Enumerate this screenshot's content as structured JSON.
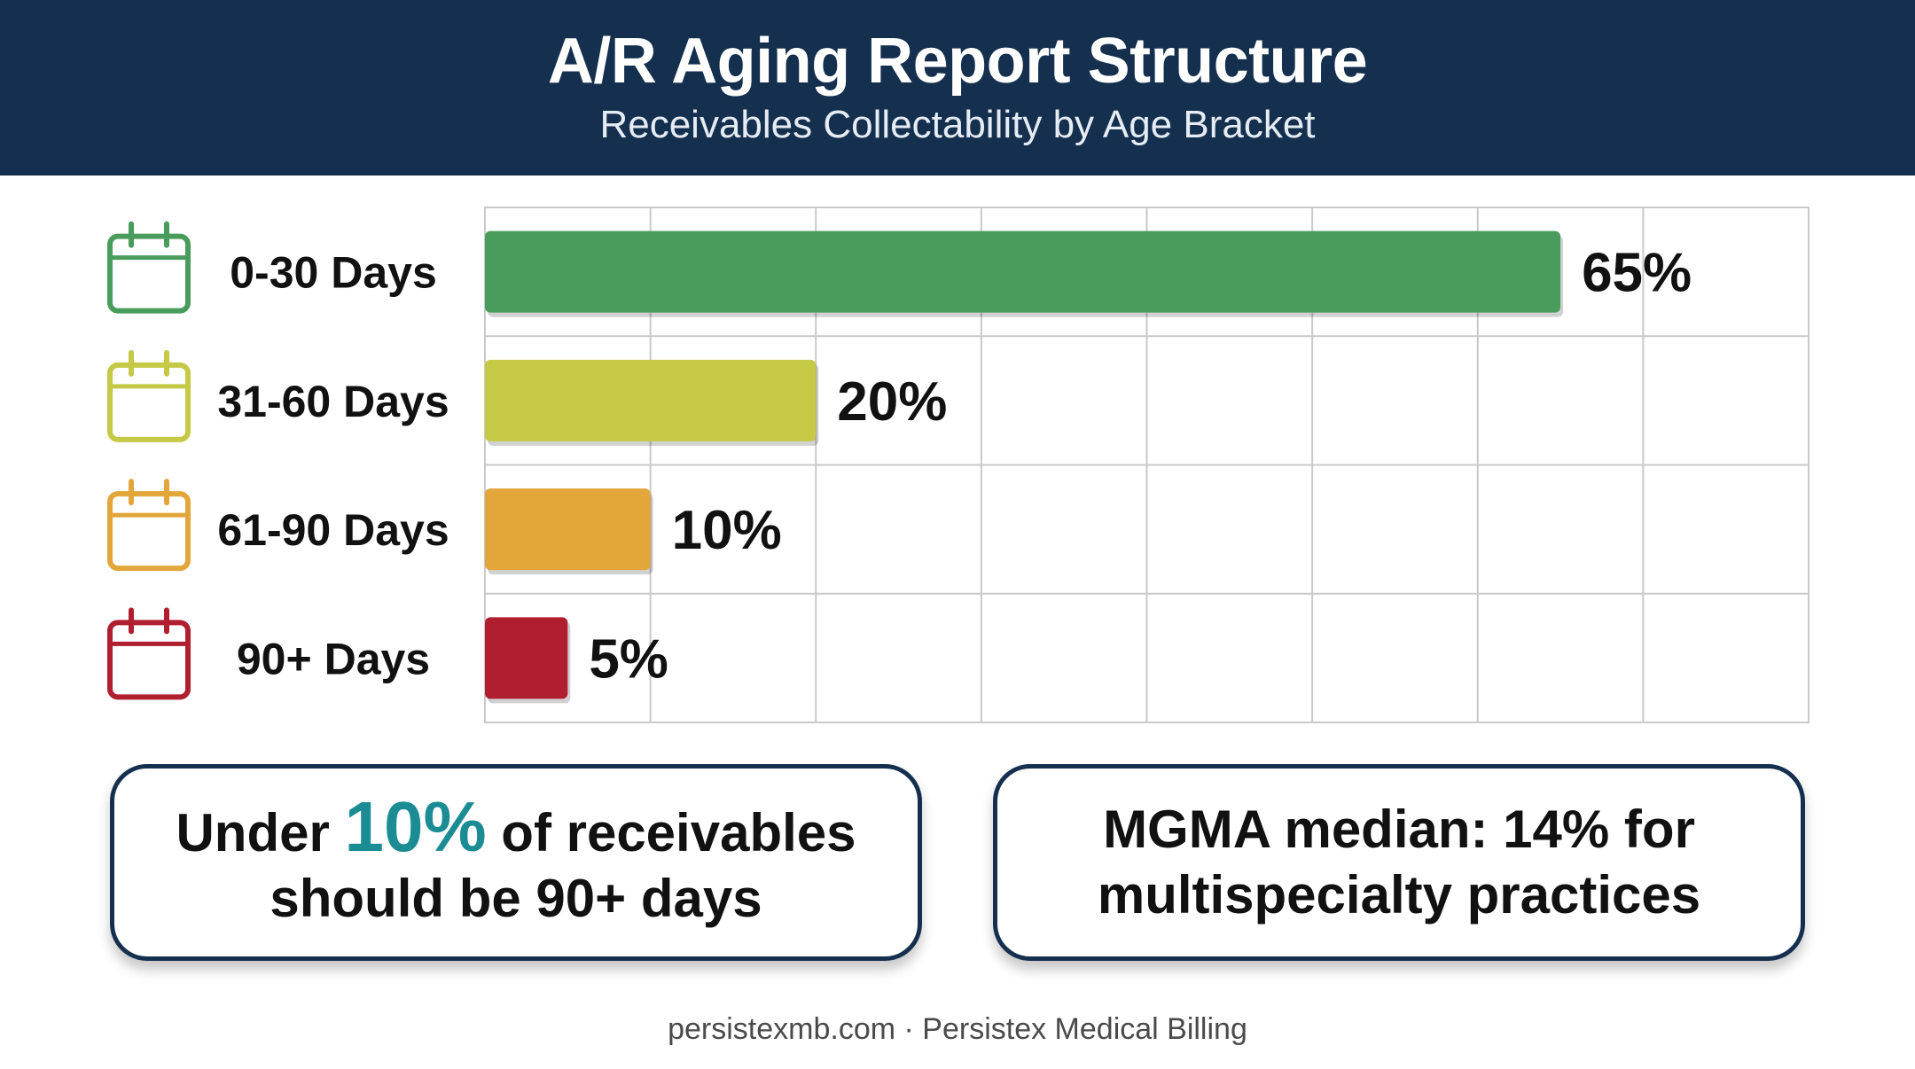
{
  "header": {
    "title": "A/R Aging Report Structure",
    "subtitle": "Receivables Collectability by Age Bracket"
  },
  "chart_data": {
    "type": "bar",
    "orientation": "horizontal",
    "title": "A/R Aging Report Structure",
    "subtitle": "Receivables Collectability by Age Bracket",
    "xlabel": "",
    "ylabel": "",
    "xlim": [
      0,
      80
    ],
    "grid": true,
    "categories": [
      "0-30 Days",
      "31-60 Days",
      "61-90 Days",
      "90+ Days"
    ],
    "values": [
      65,
      20,
      10,
      5
    ],
    "value_labels": [
      "65%",
      "20%",
      "10%",
      "5%"
    ],
    "colors": [
      "#4a9c5c",
      "#c5c945",
      "#e2a63a",
      "#b01f2f"
    ],
    "category_icon": "calendar-icon"
  },
  "callouts": {
    "left": {
      "prefix": "Under ",
      "highlight": "10%",
      "suffix": " of receivables",
      "line2": "should be 90+ days"
    },
    "right": {
      "line1": "MGMA median: 14% for",
      "line2": "multispecialty practices"
    }
  },
  "colors": {
    "header_bg": "#15304f",
    "highlight": "#1c8c94"
  },
  "footer": {
    "text": "persistexmb.com · Persistex Medical Billing"
  }
}
